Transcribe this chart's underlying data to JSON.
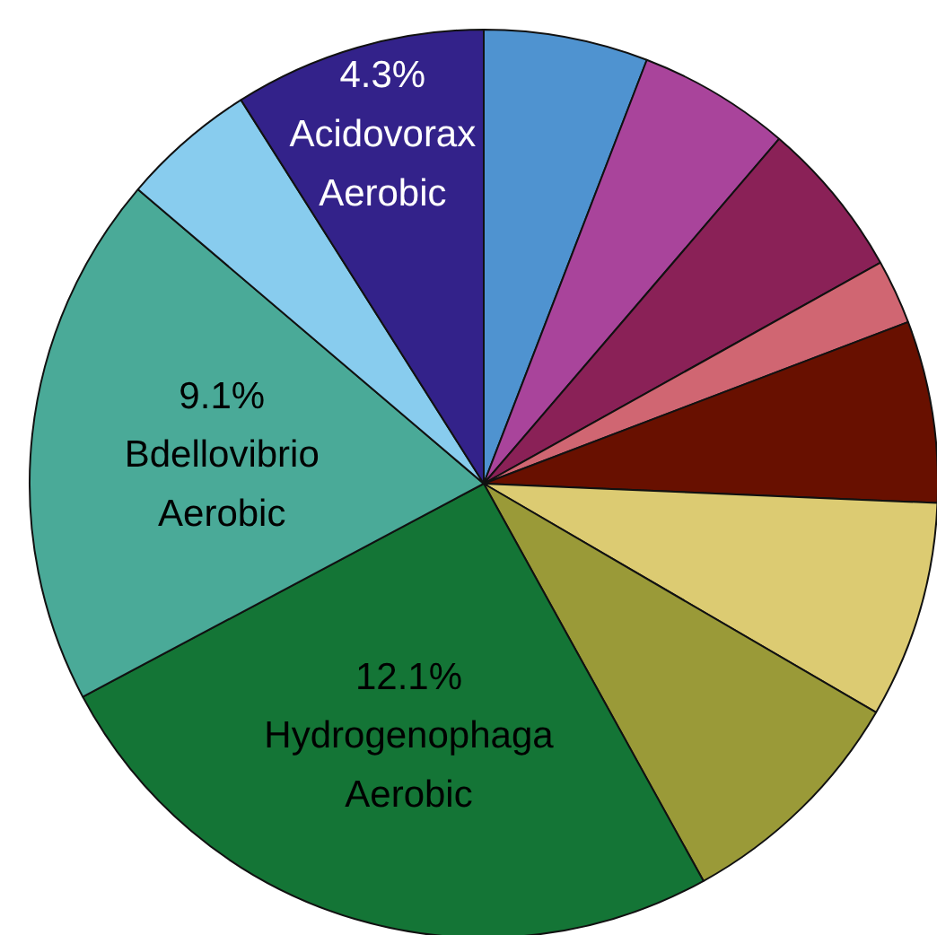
{
  "chart_data": {
    "type": "pie",
    "categories": [
      null,
      null,
      null,
      null,
      null,
      null,
      null,
      "Hydrogenophaga\nAerobic",
      "Bdellovibrio\nAerobic",
      null,
      "Acidovorax\nAerobic"
    ],
    "values": [
      2.8,
      2.6,
      2.7,
      1.1,
      3.1,
      3.7,
      4.1,
      12.1,
      9.1,
      2.3,
      4.3
    ],
    "value_labels": [
      null,
      null,
      null,
      null,
      null,
      null,
      null,
      "12.1%",
      "9.1%",
      null,
      "4.3%"
    ],
    "colors": [
      "#4f93d0",
      "#a9449b",
      "#8a2157",
      "#d06672",
      "#681000",
      "#dccb72",
      "#9a9a38",
      "#147536",
      "#4aaa98",
      "#88ccee",
      "#33228a"
    ]
  }
}
